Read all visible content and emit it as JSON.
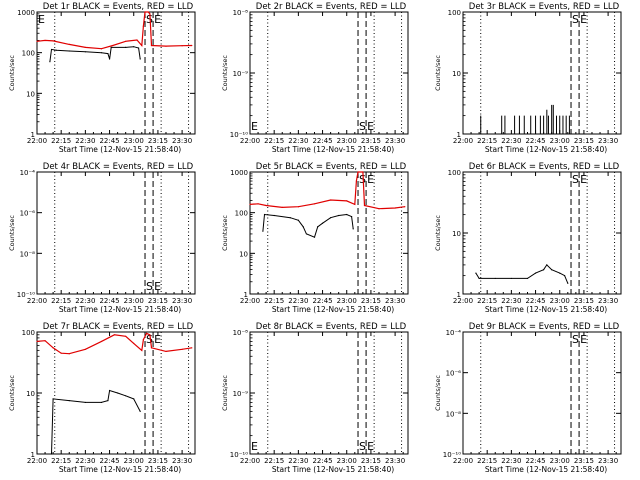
{
  "page": {
    "background": "#ffffff",
    "foreground": "#000000",
    "events_color": "#000000",
    "lld_color": "#e00000"
  },
  "chart_data": [
    {
      "type": "line",
      "y_scale": "log",
      "title": "Det 1r BLACK = Events, RED = LLD",
      "xlabel": "Start Time (12-Nov-15 21:58:40)",
      "ylabel": "Counts/sec",
      "xlim": [
        "22:00",
        "23:38"
      ],
      "ylim": [
        1,
        1000
      ],
      "x_ticks": [
        "22:00",
        "22:15",
        "22:30",
        "22:45",
        "23:00",
        "23:15",
        "23:30"
      ],
      "y_ticks": [
        "1",
        "10",
        "100",
        "1000"
      ],
      "markers": [
        {
          "label": "S",
          "x": "23:07"
        },
        {
          "label": "E",
          "x": "23:12"
        },
        {
          "label": "E",
          "x": "22:00"
        }
      ],
      "dotted_lines": [
        "22:11",
        "23:17",
        "23:34"
      ],
      "series": [
        {
          "name": "BLACK = Events",
          "color": "#000000",
          "points": [
            [
              "22:08",
              60
            ],
            [
              "22:09",
              120
            ],
            [
              "22:12",
              115
            ],
            [
              "22:20",
              110
            ],
            [
              "22:30",
              105
            ],
            [
              "22:40",
              100
            ],
            [
              "22:44",
              95
            ],
            [
              "22:45",
              70
            ],
            [
              "22:46",
              135
            ],
            [
              "22:55",
              135
            ],
            [
              "23:00",
              140
            ],
            [
              "23:03",
              130
            ],
            [
              "23:04",
              70
            ]
          ]
        },
        {
          "name": "RED = LLD",
          "color": "#e00000",
          "points": [
            [
              "22:00",
              190
            ],
            [
              "22:05",
              200
            ],
            [
              "22:10",
              195
            ],
            [
              "22:20",
              160
            ],
            [
              "22:30",
              135
            ],
            [
              "22:40",
              125
            ],
            [
              "22:47",
              150
            ],
            [
              "22:55",
              190
            ],
            [
              "23:02",
              205
            ],
            [
              "23:05",
              150
            ],
            [
              "23:06",
              450
            ],
            [
              "23:07",
              1000
            ],
            [
              "23:09",
              1000
            ],
            [
              "23:10",
              900
            ],
            [
              "23:11",
              150
            ],
            [
              "23:20",
              145
            ],
            [
              "23:30",
              148
            ],
            [
              "23:36",
              150
            ]
          ]
        }
      ]
    },
    {
      "type": "line",
      "y_scale": "log",
      "title": "Det 2r BLACK = Events, RED = LLD",
      "xlabel": "Start Time (12-Nov-15 21:58:40)",
      "ylabel": "Counts/sec",
      "xlim": [
        "22:00",
        "23:38"
      ],
      "ylim": [
        1e-10,
        1e-08
      ],
      "x_ticks": [
        "22:00",
        "22:15",
        "22:30",
        "22:45",
        "23:00",
        "23:15",
        "23:30"
      ],
      "y_ticks": [
        "10⁻¹⁰",
        "10⁻⁹",
        "10⁻⁸"
      ],
      "markers": [
        {
          "label": "S",
          "x": "23:07"
        },
        {
          "label": "E",
          "x": "23:12"
        },
        {
          "label": "E",
          "x": "22:00"
        }
      ],
      "dotted_lines": [
        "22:11",
        "23:17",
        "23:34"
      ],
      "series": []
    },
    {
      "type": "line",
      "y_scale": "log",
      "title": "Det 3r BLACK = Events, RED = LLD",
      "xlabel": "Start Time (12-Nov-15 21:58:40)",
      "ylabel": "Counts/sec",
      "xlim": [
        "22:00",
        "23:38"
      ],
      "ylim": [
        1,
        100
      ],
      "x_ticks": [
        "22:00",
        "22:15",
        "22:30",
        "22:45",
        "23:00",
        "23:15",
        "23:30"
      ],
      "y_ticks": [
        "1",
        "10",
        "100"
      ],
      "markers": [
        {
          "label": "S",
          "x": "23:07"
        },
        {
          "label": "E",
          "x": "23:12"
        }
      ],
      "dotted_lines": [
        "22:11",
        "23:17",
        "23:34"
      ],
      "series": [
        {
          "name": "BLACK = Events",
          "color": "#000000",
          "spikes": [
            [
              "22:11",
              2
            ],
            [
              "22:24",
              2
            ],
            [
              "22:26",
              2
            ],
            [
              "22:32",
              2
            ],
            [
              "22:35",
              2
            ],
            [
              "22:38",
              2
            ],
            [
              "22:42",
              2
            ],
            [
              "22:45",
              2
            ],
            [
              "22:48",
              2
            ],
            [
              "22:50",
              2
            ],
            [
              "22:52",
              2.5
            ],
            [
              "22:53",
              2
            ],
            [
              "22:55",
              3
            ],
            [
              "22:56",
              3
            ],
            [
              "22:58",
              2
            ],
            [
              "23:00",
              2
            ],
            [
              "23:02",
              2
            ],
            [
              "23:04",
              2
            ],
            [
              "23:06",
              2
            ]
          ]
        }
      ]
    },
    {
      "type": "line",
      "y_scale": "log",
      "title": "Det 4r BLACK = Events, RED = LLD",
      "xlabel": "Start Time (12-Nov-15 21:58:40)",
      "ylabel": "Counts/sec",
      "xlim": [
        "22:00",
        "23:38"
      ],
      "ylim": [
        1e-10,
        0.0001
      ],
      "x_ticks": [
        "22:00",
        "22:15",
        "22:30",
        "22:45",
        "23:00",
        "23:15",
        "23:30"
      ],
      "y_ticks": [
        "10⁻¹⁰",
        "10⁻⁸",
        "10⁻⁶",
        "10⁻⁴"
      ],
      "markers": [
        {
          "label": "S",
          "x": "23:07"
        },
        {
          "label": "E",
          "x": "23:12"
        }
      ],
      "dotted_lines": [
        "22:11",
        "23:17",
        "23:34"
      ],
      "series": []
    },
    {
      "type": "line",
      "y_scale": "log",
      "title": "Det 5r BLACK = Events, RED = LLD",
      "xlabel": "Start Time (12-Nov-15 21:58:40)",
      "ylabel": "Counts/sec",
      "xlim": [
        "22:00",
        "23:38"
      ],
      "ylim": [
        1,
        1000
      ],
      "x_ticks": [
        "22:00",
        "22:15",
        "22:30",
        "22:45",
        "23:00",
        "23:15",
        "23:30"
      ],
      "y_ticks": [
        "1",
        "10",
        "100",
        "1000"
      ],
      "markers": [
        {
          "label": "S",
          "x": "23:07"
        },
        {
          "label": "E",
          "x": "23:12"
        }
      ],
      "dotted_lines": [
        "22:11",
        "23:17",
        "23:34"
      ],
      "series": [
        {
          "name": "BLACK = Events",
          "color": "#000000",
          "points": [
            [
              "22:08",
              35
            ],
            [
              "22:09",
              90
            ],
            [
              "22:15",
              85
            ],
            [
              "22:25",
              75
            ],
            [
              "22:30",
              65
            ],
            [
              "22:33",
              45
            ],
            [
              "22:35",
              30
            ],
            [
              "22:40",
              25
            ],
            [
              "22:42",
              45
            ],
            [
              "22:45",
              55
            ],
            [
              "22:50",
              75
            ],
            [
              "22:55",
              85
            ],
            [
              "23:00",
              90
            ],
            [
              "23:03",
              80
            ],
            [
              "23:04",
              40
            ]
          ]
        },
        {
          "name": "RED = LLD",
          "color": "#e00000",
          "points": [
            [
              "22:00",
              160
            ],
            [
              "22:05",
              165
            ],
            [
              "22:10",
              150
            ],
            [
              "22:20",
              135
            ],
            [
              "22:30",
              140
            ],
            [
              "22:40",
              165
            ],
            [
              "22:50",
              205
            ],
            [
              "23:00",
              195
            ],
            [
              "23:05",
              160
            ],
            [
              "23:06",
              600
            ],
            [
              "23:07",
              1000
            ],
            [
              "23:10",
              1000
            ],
            [
              "23:11",
              150
            ],
            [
              "23:20",
              125
            ],
            [
              "23:30",
              130
            ],
            [
              "23:36",
              140
            ]
          ]
        }
      ]
    },
    {
      "type": "line",
      "y_scale": "log",
      "title": "Det 6r BLACK = Events, RED = LLD",
      "xlabel": "Start Time (12-Nov-15 21:58:40)",
      "ylabel": "Counts/sec",
      "xlim": [
        "22:00",
        "23:38"
      ],
      "ylim": [
        1,
        100
      ],
      "x_ticks": [
        "22:00",
        "22:15",
        "22:30",
        "22:45",
        "23:00",
        "23:15",
        "23:30"
      ],
      "y_ticks": [
        "1",
        "10",
        "100"
      ],
      "markers": [
        {
          "label": "S",
          "x": "23:07"
        },
        {
          "label": "E",
          "x": "23:12"
        }
      ],
      "dotted_lines": [
        "22:11",
        "23:17",
        "23:34"
      ],
      "series": [
        {
          "name": "BLACK = Events",
          "color": "#000000",
          "points": [
            [
              "22:08",
              2.2
            ],
            [
              "22:10",
              1.8
            ],
            [
              "22:20",
              1.8
            ],
            [
              "22:30",
              1.8
            ],
            [
              "22:40",
              1.8
            ],
            [
              "22:45",
              2.2
            ],
            [
              "22:50",
              2.5
            ],
            [
              "22:52",
              3
            ],
            [
              "22:55",
              2.5
            ],
            [
              "23:00",
              2.2
            ],
            [
              "23:03",
              2
            ],
            [
              "23:05",
              1.5
            ]
          ]
        }
      ]
    },
    {
      "type": "line",
      "y_scale": "log",
      "title": "Det 7r BLACK = Events, RED = LLD",
      "xlabel": "Start Time (12-Nov-15 21:58:40)",
      "ylabel": "Counts/sec",
      "xlim": [
        "22:00",
        "23:38"
      ],
      "ylim": [
        1,
        100
      ],
      "x_ticks": [
        "22:00",
        "22:15",
        "22:30",
        "22:45",
        "23:00",
        "23:15",
        "23:30"
      ],
      "y_ticks": [
        "1",
        "10",
        "100"
      ],
      "markers": [
        {
          "label": "S",
          "x": "23:07"
        },
        {
          "label": "E",
          "x": "23:12"
        }
      ],
      "dotted_lines": [
        "22:11",
        "23:17",
        "23:34"
      ],
      "series": [
        {
          "name": "BLACK = Events",
          "color": "#000000",
          "points": [
            [
              "22:09",
              1
            ],
            [
              "22:10",
              8
            ],
            [
              "22:20",
              7.5
            ],
            [
              "22:30",
              7
            ],
            [
              "22:40",
              7
            ],
            [
              "22:44",
              7.5
            ],
            [
              "22:45",
              11
            ],
            [
              "22:50",
              10
            ],
            [
              "22:55",
              9
            ],
            [
              "23:00",
              8
            ],
            [
              "23:04",
              5
            ]
          ]
        },
        {
          "name": "RED = LLD",
          "color": "#e00000",
          "points": [
            [
              "22:00",
              70
            ],
            [
              "22:05",
              72
            ],
            [
              "22:10",
              55
            ],
            [
              "22:15",
              45
            ],
            [
              "22:20",
              44
            ],
            [
              "22:30",
              52
            ],
            [
              "22:40",
              70
            ],
            [
              "22:48",
              90
            ],
            [
              "22:55",
              85
            ],
            [
              "23:00",
              65
            ],
            [
              "23:05",
              50
            ],
            [
              "23:06",
              75
            ],
            [
              "23:08",
              95
            ],
            [
              "23:10",
              90
            ],
            [
              "23:11",
              55
            ],
            [
              "23:20",
              48
            ],
            [
              "23:30",
              52
            ],
            [
              "23:36",
              55
            ]
          ]
        }
      ]
    },
    {
      "type": "line",
      "y_scale": "log",
      "title": "Det 8r BLACK = Events, RED = LLD",
      "xlabel": "Start Time (12-Nov-15 21:58:40)",
      "ylabel": "Counts/sec",
      "xlim": [
        "22:00",
        "23:38"
      ],
      "ylim": [
        1e-10,
        1e-08
      ],
      "x_ticks": [
        "22:00",
        "22:15",
        "22:30",
        "22:45",
        "23:00",
        "23:15",
        "23:30"
      ],
      "y_ticks": [
        "10⁻¹⁰",
        "10⁻⁹",
        "10⁻⁸"
      ],
      "markers": [
        {
          "label": "S",
          "x": "23:07"
        },
        {
          "label": "E",
          "x": "23:12"
        },
        {
          "label": "E",
          "x": "22:00"
        }
      ],
      "dotted_lines": [
        "22:11",
        "23:17",
        "23:34"
      ],
      "series": []
    },
    {
      "type": "line",
      "y_scale": "log",
      "title": "Det 9r BLACK = Events, RED = LLD",
      "xlabel": "Start Time (12-Nov-15 21:58:40)",
      "ylabel": "Counts/sec",
      "xlim": [
        "22:00",
        "23:38"
      ],
      "ylim": [
        1e-10,
        0.0001
      ],
      "x_ticks": [
        "22:00",
        "22:15",
        "22:30",
        "22:45",
        "23:00",
        "23:15",
        "23:30"
      ],
      "y_ticks": [
        "10⁻¹⁰",
        "10⁻⁸",
        "10⁻⁶",
        "10⁻⁴"
      ],
      "markers": [
        {
          "label": "S",
          "x": "23:07"
        },
        {
          "label": "E",
          "x": "23:12"
        }
      ],
      "dotted_lines": [
        "22:11",
        "23:17",
        "23:34"
      ],
      "series": []
    }
  ]
}
